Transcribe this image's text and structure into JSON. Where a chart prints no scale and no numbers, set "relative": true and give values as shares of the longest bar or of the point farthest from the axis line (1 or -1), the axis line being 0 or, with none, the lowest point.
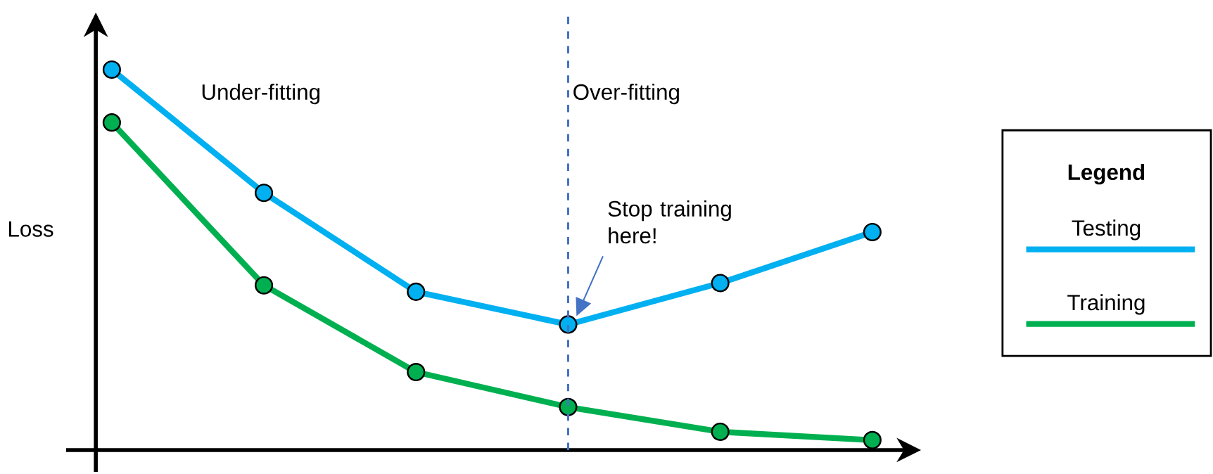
{
  "chart_data": {
    "type": "line",
    "relative": true,
    "ylabel": "Loss",
    "legend_title": "Legend",
    "legend": "right",
    "marker": "circle",
    "line_style": "solid",
    "categories": [
      null,
      null,
      null,
      null,
      null,
      null
    ],
    "series": [
      {
        "name": "Testing",
        "color": "#00b0f0",
        "values": [
          1,
          0.676,
          0.416,
          0.33,
          0.439,
          0.573
        ]
      },
      {
        "name": "Training",
        "color": "#00b050",
        "values": [
          0.861,
          0.433,
          0.205,
          0.113,
          0.048,
          0.026
        ]
      }
    ],
    "annotations": [
      "Under-fitting",
      "Over-fitting",
      "Stop training here!"
    ]
  }
}
